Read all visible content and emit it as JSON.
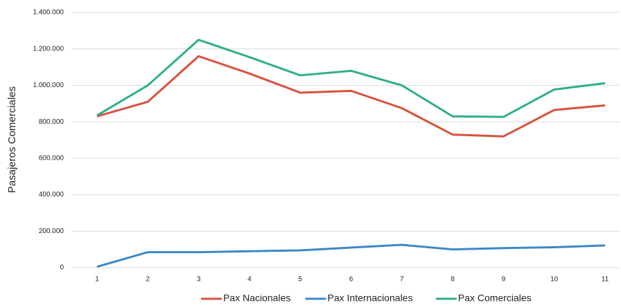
{
  "chart_data": {
    "type": "line",
    "y_label": "Pasajeros Comerciales",
    "categories": [
      "1",
      "2",
      "3",
      "4",
      "5",
      "6",
      "7",
      "8",
      "9",
      "10",
      "11"
    ],
    "series": [
      {
        "name": "Pax Nacionales",
        "color": "#d9503f",
        "values": [
          830000,
          910000,
          1160000,
          1065000,
          960000,
          970000,
          875000,
          730000,
          720000,
          865000,
          890000
        ]
      },
      {
        "name": "Pax Internacionales",
        "color": "#3a87c8",
        "values": [
          5000,
          85000,
          85000,
          90000,
          95000,
          110000,
          125000,
          100000,
          107000,
          112000,
          122000
        ]
      },
      {
        "name": "Pax Comerciales",
        "color": "#2fae89",
        "values": [
          835000,
          1000000,
          1250000,
          1155000,
          1055000,
          1080000,
          1000000,
          830000,
          827000,
          977000,
          1012000
        ]
      }
    ],
    "ylim": [
      0,
      1400000
    ],
    "yticks": [
      0,
      {
        "value": 200000,
        "label": "200.000"
      },
      {
        "value": 400000,
        "label": "400.000"
      },
      {
        "value": 600000,
        "label": "600.000"
      },
      {
        "value": 800000,
        "label": "800.000"
      },
      {
        "value": 1000000,
        "label": "1.000.000"
      },
      {
        "value": 1200000,
        "label": "1.200.000"
      },
      {
        "value": 1400000,
        "label": "1.400.000"
      }
    ],
    "grid": true,
    "legend": "bottom"
  }
}
